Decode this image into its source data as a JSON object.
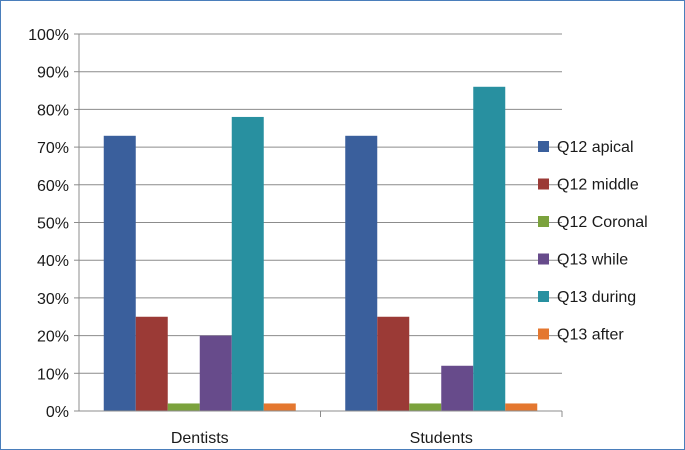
{
  "chart_data": {
    "type": "bar",
    "categories": [
      "Dentists",
      "Students"
    ],
    "series": [
      {
        "name": "Q12 apical",
        "color": "#3a5f9c",
        "values": [
          73,
          73
        ]
      },
      {
        "name": "Q12 middle",
        "color": "#9b3a36",
        "values": [
          25,
          25
        ]
      },
      {
        "name": "Q12 Coronal",
        "color": "#7ba23d",
        "values": [
          2,
          2
        ]
      },
      {
        "name": "Q13 while",
        "color": "#674b8b",
        "values": [
          20,
          12
        ]
      },
      {
        "name": "Q13 during",
        "color": "#2890a0",
        "values": [
          78,
          86
        ]
      },
      {
        "name": "Q13 after",
        "color": "#e4772f",
        "values": [
          2,
          2
        ]
      }
    ],
    "yticks": [
      "0%",
      "10%",
      "20%",
      "30%",
      "40%",
      "50%",
      "60%",
      "70%",
      "80%",
      "90%",
      "100%"
    ],
    "ylim": [
      0,
      100
    ],
    "grid": true,
    "legend_position": "right",
    "title": "",
    "xlabel": "",
    "ylabel": ""
  }
}
